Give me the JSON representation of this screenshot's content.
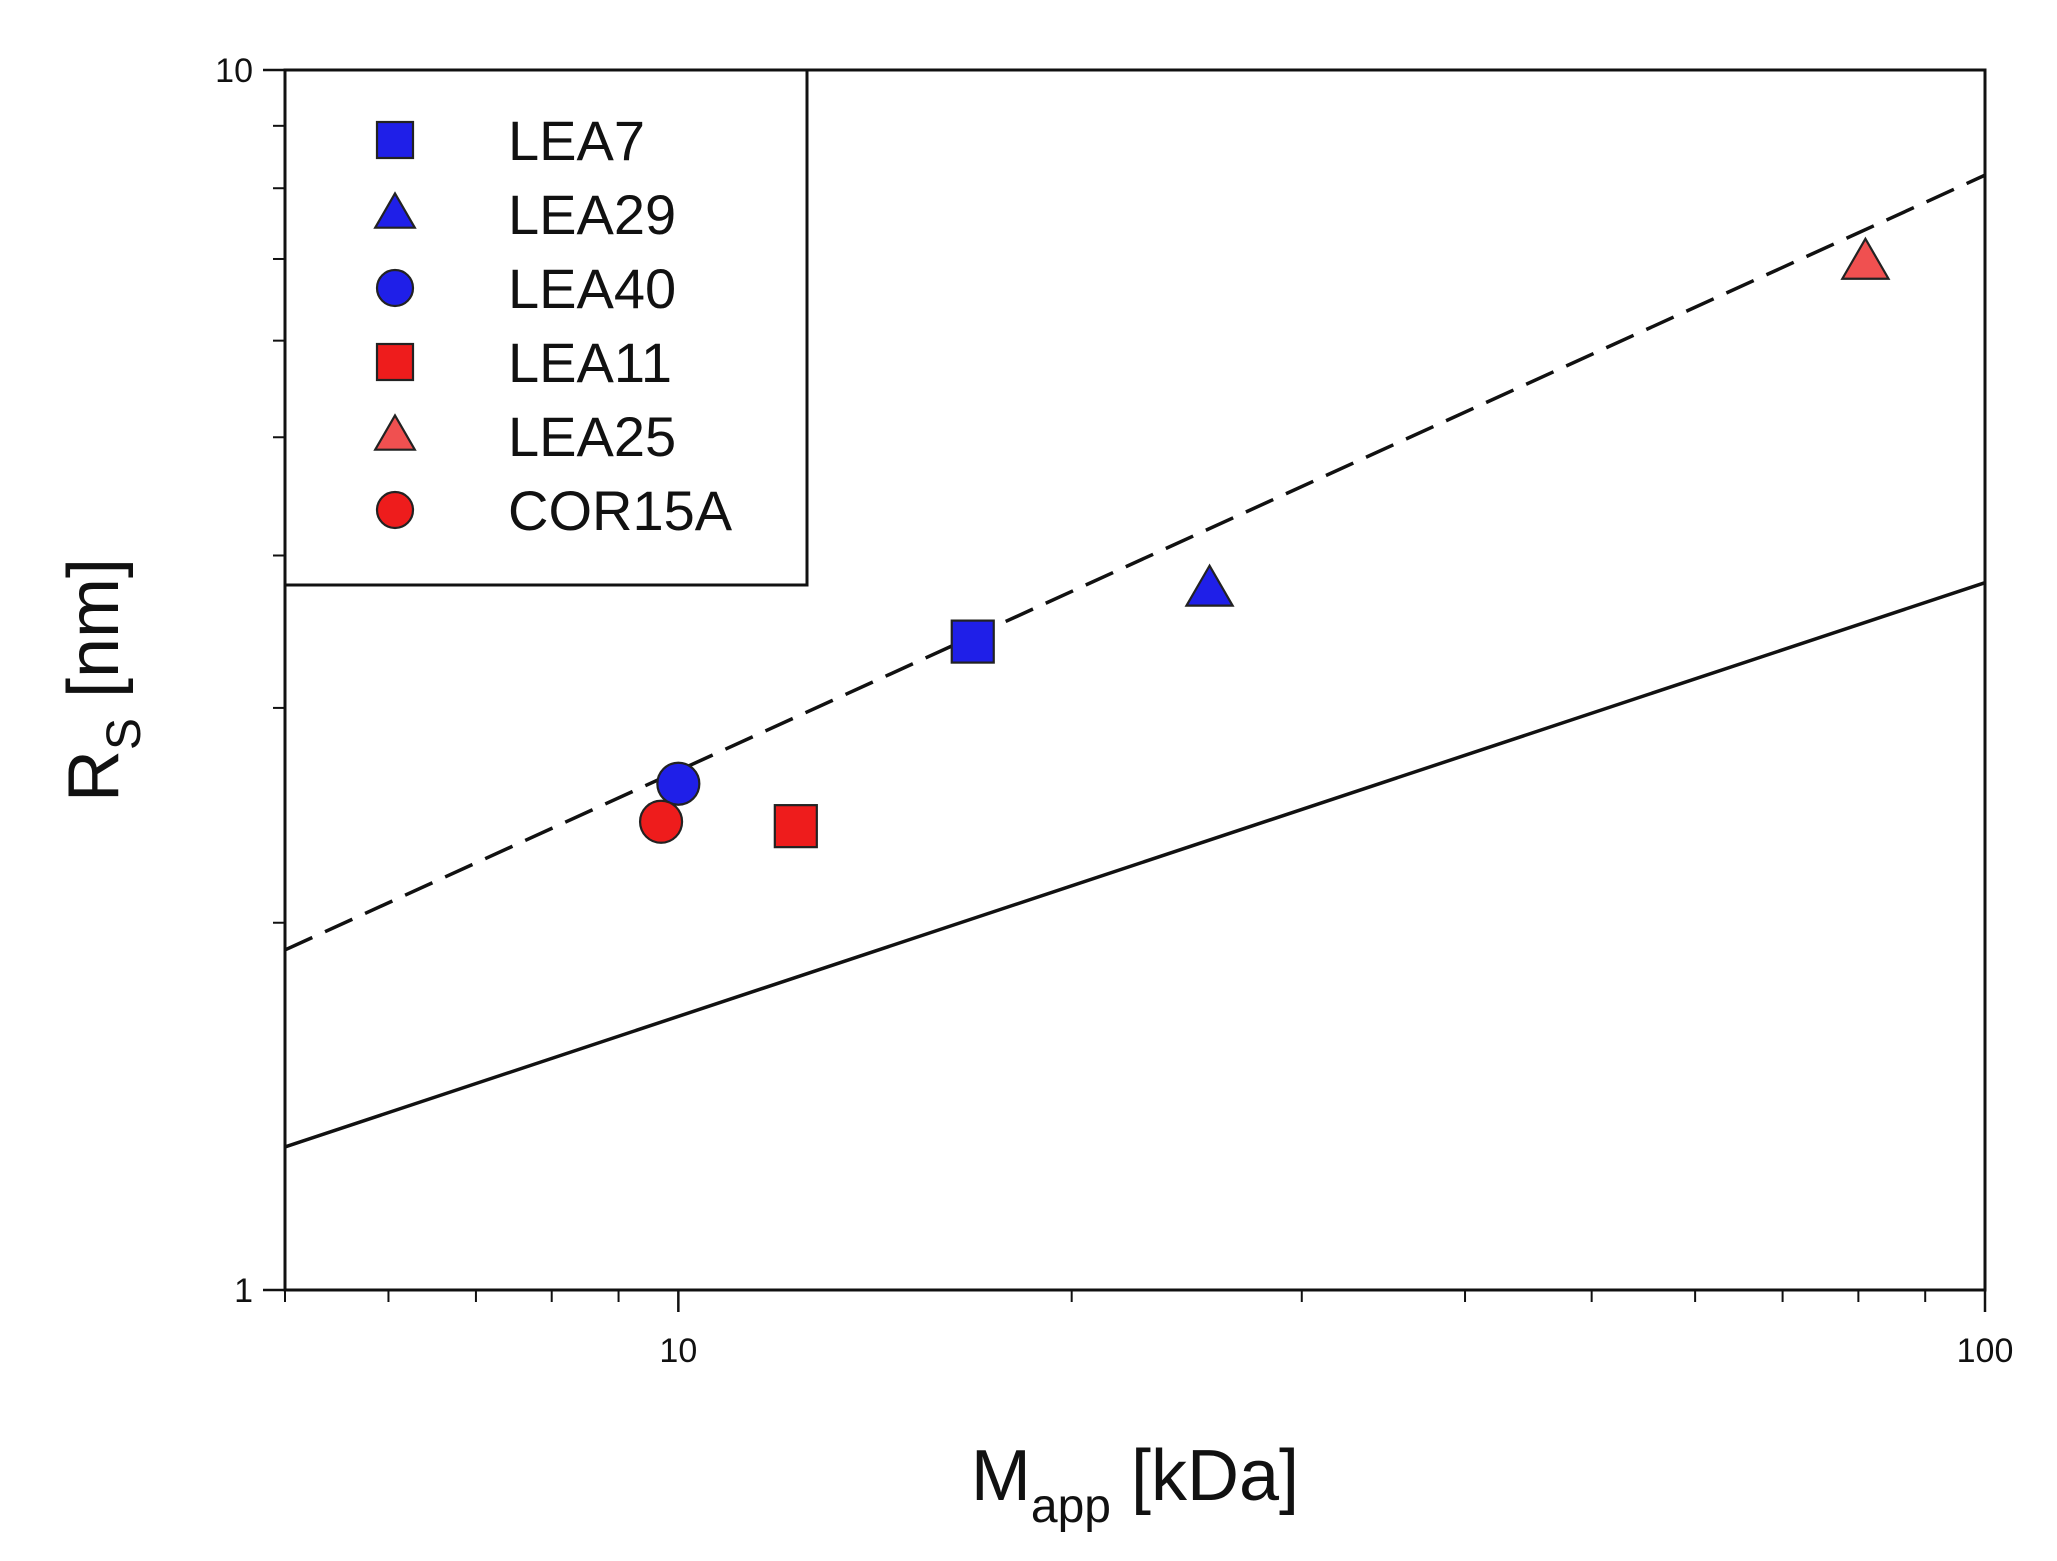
{
  "chart_data": {
    "type": "scatter",
    "title": "",
    "xlabel": {
      "main": "M",
      "sub": "app",
      "rest": " [kDa]"
    },
    "ylabel": {
      "main": "R",
      "sub": "S",
      "rest": " [nm]"
    },
    "x_scale": "log",
    "y_scale": "log",
    "xlim": [
      5,
      100
    ],
    "ylim": [
      1,
      10
    ],
    "x_ticks": [
      {
        "value": 10,
        "label": "10"
      },
      {
        "value": 100,
        "label": "100"
      }
    ],
    "y_ticks": [
      {
        "value": 1,
        "label": "1"
      },
      {
        "value": 10,
        "label": "10"
      }
    ],
    "x_minor_ticks": [
      5,
      6,
      7,
      8,
      9,
      20,
      30,
      40,
      50,
      60,
      70,
      80,
      90
    ],
    "y_minor_ticks": [
      2,
      3,
      4,
      5,
      6,
      7,
      8,
      9
    ],
    "grid": false,
    "legend_position": "top-left",
    "series": [
      {
        "name": "LEA7",
        "marker": "square",
        "color": "#1f1fe8",
        "x": [
          16.8
        ],
        "y": [
          3.4
        ]
      },
      {
        "name": "LEA29",
        "marker": "triangle",
        "color": "#1f1fe8",
        "x": [
          25.5
        ],
        "y": [
          3.75
        ]
      },
      {
        "name": "LEA40",
        "marker": "circle",
        "color": "#1f1fe8",
        "x": [
          10.0
        ],
        "y": [
          2.6
        ]
      },
      {
        "name": "LEA11",
        "marker": "square",
        "color": "#ee1c1c",
        "x": [
          12.3
        ],
        "y": [
          2.4
        ]
      },
      {
        "name": "LEA25",
        "marker": "triangle",
        "color": "#f05050",
        "x": [
          81.0
        ],
        "y": [
          6.95
        ]
      },
      {
        "name": "COR15A",
        "marker": "circle",
        "color": "#ee1c1c",
        "x": [
          9.7
        ],
        "y": [
          2.42
        ]
      }
    ],
    "lines": [
      {
        "name": "dashed-fit",
        "style": "dashed",
        "x": [
          5,
          100
        ],
        "y": [
          1.9,
          8.2
        ]
      },
      {
        "name": "solid-fit",
        "style": "solid",
        "x": [
          5,
          100
        ],
        "y": [
          1.31,
          3.8
        ]
      }
    ]
  }
}
